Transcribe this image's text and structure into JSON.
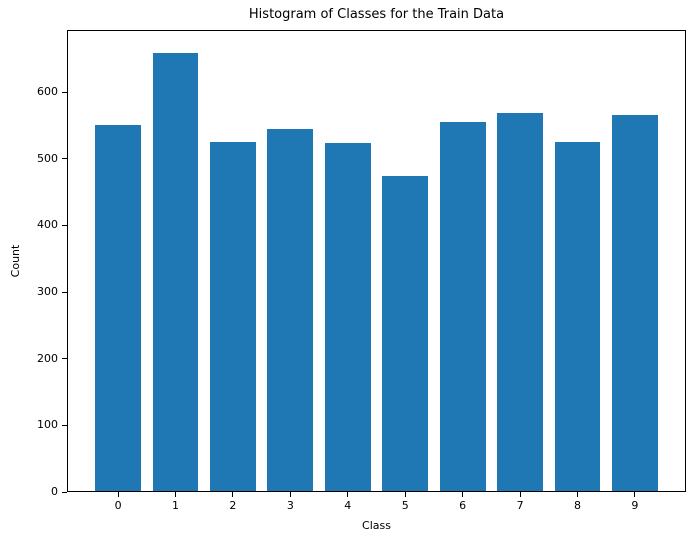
{
  "figure": {
    "title": "Histogram of Classes for the Train Data",
    "xlabel": "Class",
    "ylabel": "Count"
  },
  "chart_data": {
    "type": "bar",
    "title": "Histogram of Classes for the Train Data",
    "xlabel": "Class",
    "ylabel": "Count",
    "categories": [
      "0",
      "1",
      "2",
      "3",
      "4",
      "5",
      "6",
      "7",
      "8",
      "9"
    ],
    "values": [
      551,
      660,
      526,
      546,
      524,
      474,
      556,
      570,
      526,
      566
    ],
    "ylim": [
      0,
      693
    ],
    "yticks": [
      0,
      100,
      200,
      300,
      400,
      500,
      600
    ],
    "bar_color": "#1f77b4",
    "bar_width_fraction": 0.8,
    "grid": false,
    "legend_position": "none",
    "background_color": "#ffffff",
    "axis_color": "#000000"
  }
}
